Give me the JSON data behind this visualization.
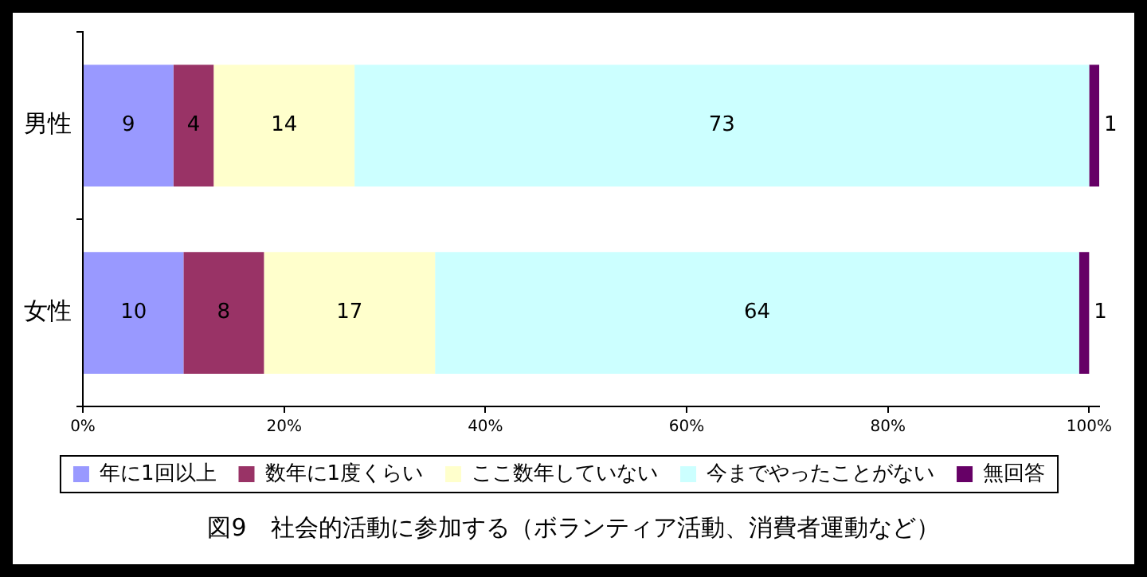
{
  "chart_data": {
    "type": "bar",
    "orientation": "horizontal",
    "stacked": true,
    "title": "図9　社会的活動に参加する（ボランティア活動、消費者運動など）",
    "categories": [
      "男性",
      "女性"
    ],
    "series": [
      {
        "name": "年に1回以上",
        "color": "#9999ff",
        "values": [
          9,
          10
        ]
      },
      {
        "name": "数年に1度くらい",
        "color": "#993366",
        "values": [
          4,
          8
        ]
      },
      {
        "name": "ここ数年していない",
        "color": "#ffffcc",
        "values": [
          14,
          17
        ]
      },
      {
        "name": "今までやったことがない",
        "color": "#ccffff",
        "values": [
          73,
          64
        ]
      },
      {
        "name": "無回答",
        "color": "#660066",
        "values": [
          1,
          1
        ]
      }
    ],
    "data_labels": true,
    "xlim": [
      0,
      101
    ],
    "xticks": [
      {
        "value": 0,
        "label": "0%"
      },
      {
        "value": 20,
        "label": "20%"
      },
      {
        "value": 40,
        "label": "40%"
      },
      {
        "value": 60,
        "label": "60%"
      },
      {
        "value": 80,
        "label": "80%"
      },
      {
        "value": 100,
        "label": "100%"
      }
    ],
    "grid": false,
    "legend": "bottom"
  }
}
